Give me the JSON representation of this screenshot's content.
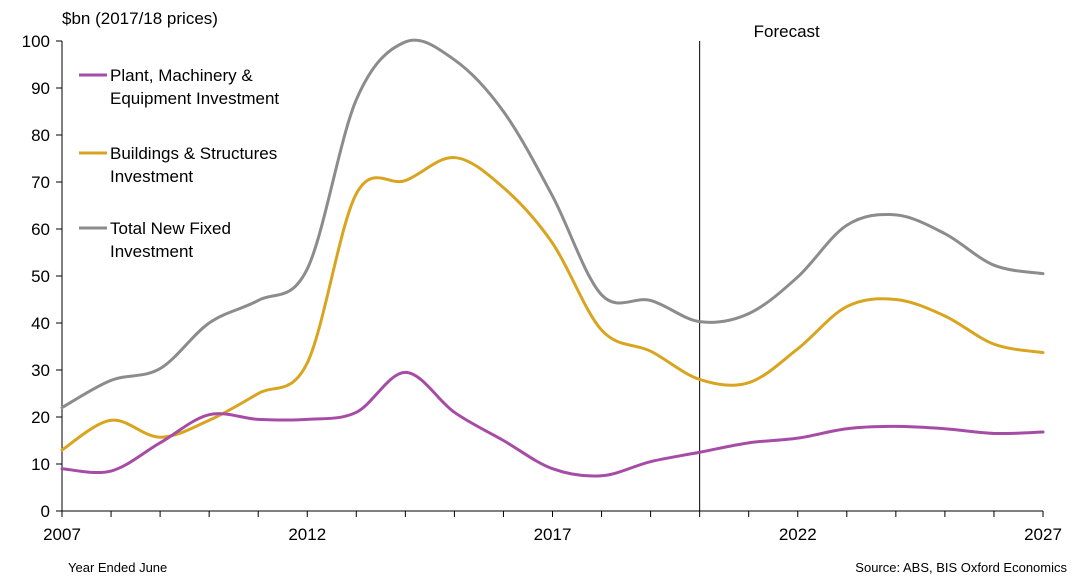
{
  "chart_data": {
    "type": "line",
    "ylabel": "$bn (2017/18 prices)",
    "xlabel": "Year Ended June",
    "source": "Source: ABS, BIS Oxford Economics",
    "forecast_label": "Forecast",
    "forecast_start_year": 2020,
    "xlim": [
      2007,
      2027
    ],
    "ylim": [
      0,
      100
    ],
    "x_ticks": [
      2007,
      2012,
      2017,
      2022,
      2027
    ],
    "y_ticks": [
      0,
      10,
      20,
      30,
      40,
      50,
      60,
      70,
      80,
      90,
      100
    ],
    "x": [
      2007,
      2008,
      2009,
      2010,
      2011,
      2012,
      2013,
      2014,
      2015,
      2016,
      2017,
      2018,
      2019,
      2020,
      2021,
      2022,
      2023,
      2024,
      2025,
      2026,
      2027
    ],
    "grid": false,
    "legend_position": "top-left",
    "series": [
      {
        "name": "Plant, Machinery & Equipment Investment",
        "name_lines": [
          "Plant, Machinery &",
          "Equipment Investment"
        ],
        "color": "#a64ca6",
        "values": [
          9,
          8.5,
          14.5,
          20.5,
          19.5,
          19.5,
          21,
          29.5,
          21,
          15,
          9,
          7.5,
          10.5,
          12.5,
          14.5,
          15.5,
          17.5,
          18,
          17.5,
          16.5,
          16.8
        ]
      },
      {
        "name": "Buildings & Structures Investment",
        "name_lines": [
          "Buildings & Structures",
          "Investment"
        ],
        "color": "#d9a520",
        "values": [
          13,
          19.3,
          15.7,
          19.3,
          25,
          31.5,
          67.5,
          70.3,
          75.2,
          68.8,
          57,
          38.5,
          34,
          28,
          27.3,
          34.5,
          43.5,
          45,
          41.5,
          35.5,
          33.7
        ]
      },
      {
        "name": "Total New Fixed Investment",
        "name_lines": [
          "Total New Fixed",
          "Investment"
        ],
        "color": "#8c8c8c",
        "values": [
          22,
          27.8,
          30.3,
          40,
          44.8,
          51.5,
          87.5,
          99.8,
          96,
          85,
          67,
          46,
          44.8,
          40.3,
          42,
          49.8,
          60.8,
          63,
          59,
          52.3,
          50.5
        ]
      }
    ]
  }
}
